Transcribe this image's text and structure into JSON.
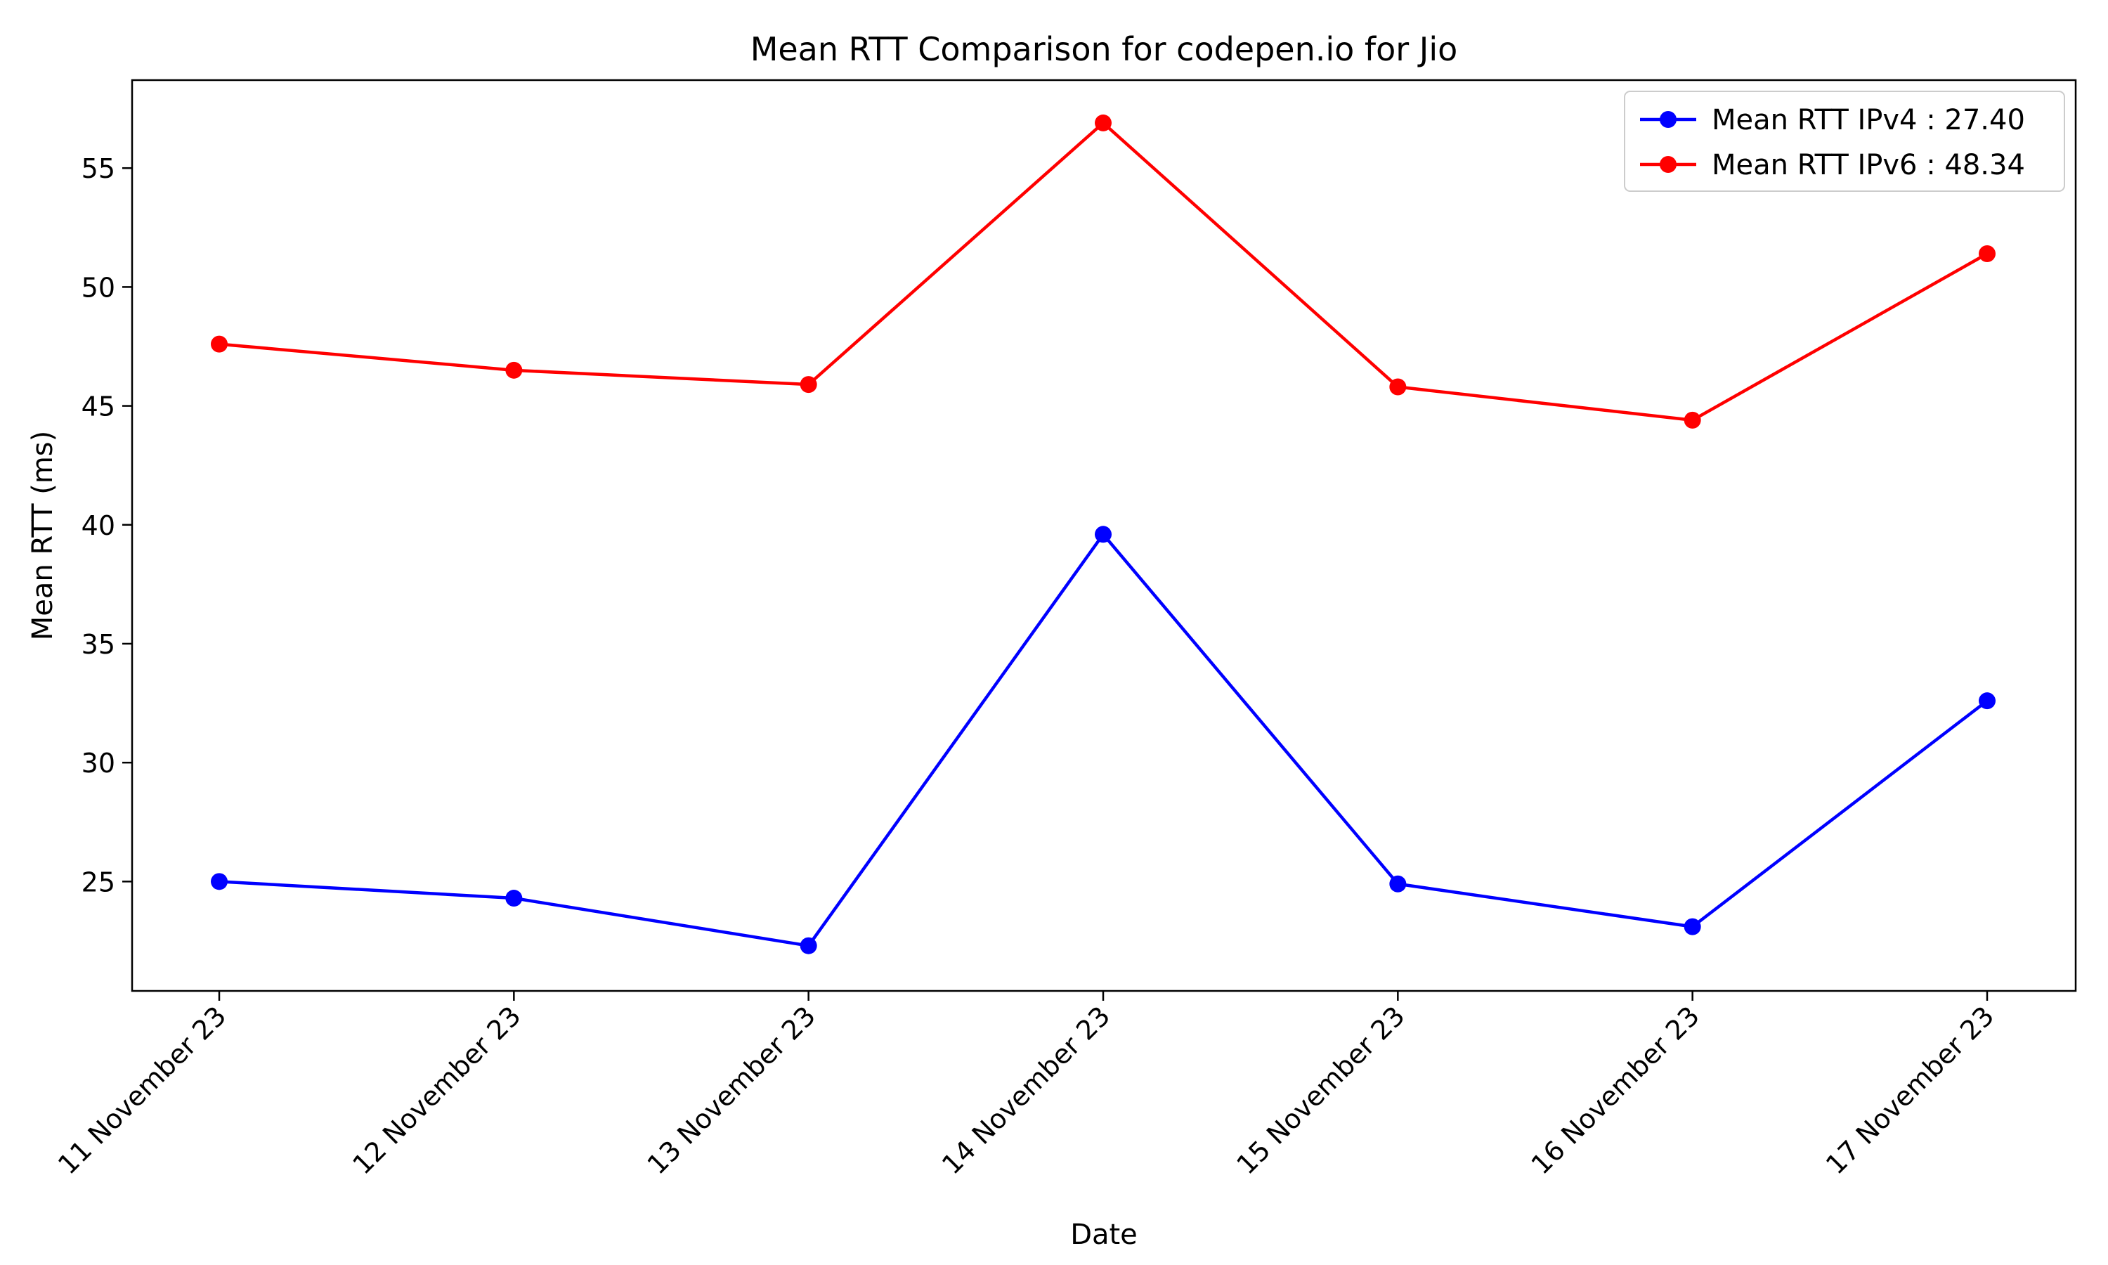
{
  "chart_data": {
    "type": "line",
    "title": "Mean RTT Comparison for codepen.io for Jio",
    "xlabel": "Date",
    "ylabel": "Mean RTT (ms)",
    "categories": [
      "11 November 23",
      "12 November 23",
      "13 November 23",
      "14 November 23",
      "15 November 23",
      "16 November 23",
      "17 November 23"
    ],
    "ylim": [
      20.4,
      58.7
    ],
    "yticks": [
      25,
      30,
      35,
      40,
      45,
      50,
      55
    ],
    "grid": false,
    "legend_position": "top-right",
    "series": [
      {
        "name": "Mean RTT IPv4 : 27.40",
        "color": "#0000ff",
        "values": [
          25.0,
          24.3,
          22.3,
          39.6,
          24.9,
          23.1,
          32.6
        ]
      },
      {
        "name": "Mean RTT IPv6 : 48.34",
        "color": "#ff0000",
        "values": [
          47.6,
          46.5,
          45.9,
          56.9,
          45.8,
          44.4,
          51.4
        ]
      }
    ]
  }
}
